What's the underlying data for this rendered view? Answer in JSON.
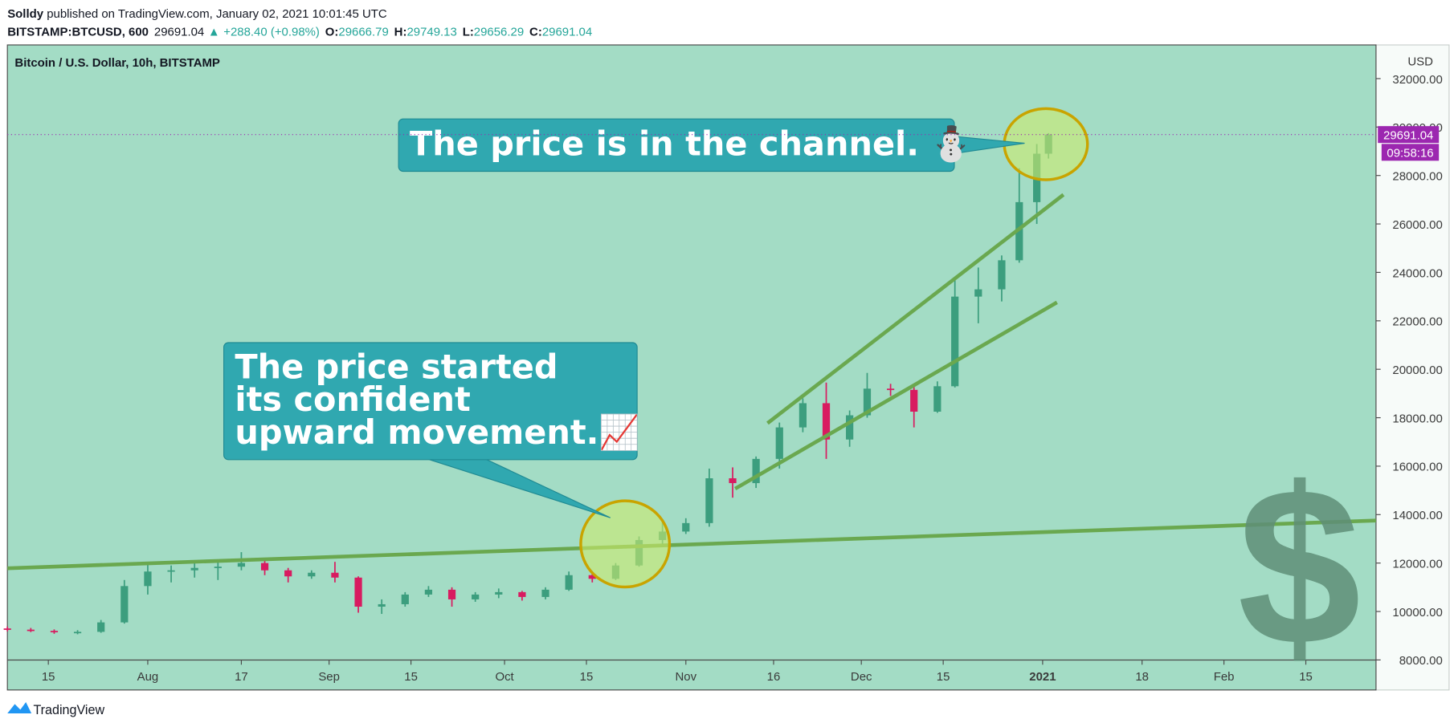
{
  "header": {
    "author": "Solldy",
    "published": " published on TradingView.com, January 02, 2021 10:01:45 UTC",
    "symbol": "BITSTAMP:BTCUSD, 600",
    "last": "29691.04",
    "change": "+288.40 (+0.98%)",
    "o_label": "O:",
    "open": "29666.79",
    "h_label": "H:",
    "high": "29749.13",
    "l_label": "L:",
    "low": "29656.29",
    "c_label": "C:",
    "close": "29691.04"
  },
  "footer": {
    "brand": "TradingView"
  },
  "chart_data": {
    "type": "candlestick",
    "title": "Bitcoin / U.S. Dollar, 10h, BITSTAMP",
    "y_unit": "USD",
    "price_label": "29691.04",
    "countdown": "09:58:16",
    "up_color": "#3c9e7e",
    "down_color": "#d81b60",
    "x": [
      "2020-07-08",
      "2020-07-12",
      "2020-07-16",
      "2020-07-20",
      "2020-07-24",
      "2020-07-28",
      "2020-08-01",
      "2020-08-05",
      "2020-08-09",
      "2020-08-13",
      "2020-08-17",
      "2020-08-21",
      "2020-08-25",
      "2020-08-29",
      "2020-09-02",
      "2020-09-06",
      "2020-09-10",
      "2020-09-14",
      "2020-09-18",
      "2020-09-22",
      "2020-09-26",
      "2020-09-30",
      "2020-10-04",
      "2020-10-08",
      "2020-10-12",
      "2020-10-16",
      "2020-10-20",
      "2020-10-24",
      "2020-10-28",
      "2020-11-01",
      "2020-11-05",
      "2020-11-09",
      "2020-11-13",
      "2020-11-17",
      "2020-11-21",
      "2020-11-25",
      "2020-11-29",
      "2020-12-02",
      "2020-12-06",
      "2020-12-10",
      "2020-12-14",
      "2020-12-17",
      "2020-12-21",
      "2020-12-25",
      "2020-12-28",
      "2020-12-31",
      "2021-01-02"
    ],
    "open": [
      9300,
      9250,
      9200,
      9150,
      9160,
      9550,
      11050,
      11650,
      11700,
      11800,
      11850,
      12000,
      11700,
      11450,
      11600,
      11400,
      10200,
      10300,
      10700,
      10900,
      10500,
      10700,
      10800,
      10600,
      10900,
      11500,
      11350,
      11900,
      12950,
      13300,
      13650,
      15500,
      15300,
      16300,
      17600,
      18600,
      17100,
      18100,
      19200,
      19150,
      18250,
      19300,
      23000,
      23300,
      24500,
      26900,
      28900
    ],
    "high": [
      9380,
      9320,
      9260,
      9230,
      9650,
      11300,
      12050,
      11900,
      12000,
      12100,
      12450,
      12100,
      11800,
      11700,
      12050,
      11450,
      10500,
      10800,
      11050,
      11000,
      10800,
      10950,
      10850,
      11000,
      11650,
      11600,
      12000,
      13100,
      13700,
      13850,
      15900,
      15950,
      16400,
      17800,
      18800,
      19450,
      18300,
      19850,
      19400,
      19300,
      19500,
      23700,
      24200,
      24700,
      28300,
      29300,
      29749.13
    ],
    "low": [
      9180,
      9150,
      9080,
      9060,
      9120,
      9500,
      10700,
      11200,
      11400,
      11300,
      11700,
      11500,
      11200,
      11350,
      11200,
      9950,
      9900,
      10200,
      10600,
      10200,
      10400,
      10550,
      10450,
      10500,
      10850,
      11200,
      11300,
      11850,
      12800,
      13200,
      13500,
      14700,
      15100,
      15900,
      17400,
      16300,
      16800,
      18000,
      18900,
      17600,
      18200,
      19250,
      21900,
      22800,
      24400,
      26000,
      28700
    ],
    "close": [
      9250,
      9200,
      9150,
      9160,
      9550,
      11050,
      11650,
      11700,
      11800,
      11850,
      12000,
      11700,
      11450,
      11600,
      11400,
      10200,
      10300,
      10700,
      10900,
      10500,
      10700,
      10800,
      10600,
      10900,
      11500,
      11350,
      11900,
      12950,
      13300,
      13650,
      15500,
      15300,
      16300,
      17600,
      18600,
      17100,
      18100,
      19200,
      19150,
      18250,
      19300,
      23000,
      23300,
      24500,
      26900,
      28900,
      29691.04
    ],
    "xlim": [
      "2020-07-08",
      "2021-02-27"
    ],
    "xticks": [
      {
        "value": "2020-07-15",
        "label": "15"
      },
      {
        "value": "2020-08-01",
        "label": "Aug"
      },
      {
        "value": "2020-08-17",
        "label": "17"
      },
      {
        "value": "2020-09-01",
        "label": "Sep"
      },
      {
        "value": "2020-09-15",
        "label": "15"
      },
      {
        "value": "2020-10-01",
        "label": "Oct"
      },
      {
        "value": "2020-10-15",
        "label": "15"
      },
      {
        "value": "2020-11-01",
        "label": "Nov"
      },
      {
        "value": "2020-11-16",
        "label": "16"
      },
      {
        "value": "2020-12-01",
        "label": "Dec"
      },
      {
        "value": "2020-12-15",
        "label": "15"
      },
      {
        "value": "2021-01-01",
        "label": "2021"
      },
      {
        "value": "2021-01-18",
        "label": "18"
      },
      {
        "value": "2021-02-01",
        "label": "Feb"
      },
      {
        "value": "2021-02-15",
        "label": "15"
      }
    ],
    "ylim": [
      6760,
      33390
    ],
    "yticks": [
      {
        "value": 8000,
        "label": "8000.00"
      },
      {
        "value": 10000,
        "label": "10000.00"
      },
      {
        "value": 12000,
        "label": "12000.00"
      },
      {
        "value": 14000,
        "label": "14000.00"
      },
      {
        "value": 16000,
        "label": "16000.00"
      },
      {
        "value": 18000,
        "label": "18000.00"
      },
      {
        "value": 20000,
        "label": "20000.00"
      },
      {
        "value": 22000,
        "label": "22000.00"
      },
      {
        "value": 24000,
        "label": "24000.00"
      },
      {
        "value": 26000,
        "label": "26000.00"
      },
      {
        "value": 28000,
        "label": "28000.00"
      },
      {
        "value": 30000,
        "label": "30000.00"
      },
      {
        "value": 32000,
        "label": "32000.00"
      }
    ],
    "annotations": [
      "The price is in the channel. ⛄",
      [
        "The price started",
        "its confident",
        "upward movement.📈"
      ]
    ],
    "sticker": "$"
  }
}
